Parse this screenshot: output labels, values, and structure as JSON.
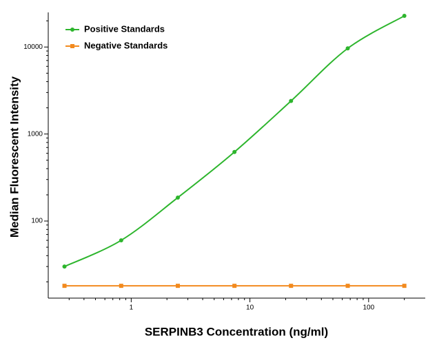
{
  "chart_data": {
    "type": "line",
    "x_label": "SERPINB3 Concentration (ng/ml)",
    "y_label": "Median Fluorescent Intensity",
    "x": [
      0.274,
      0.823,
      2.47,
      7.41,
      22.2,
      66.7,
      200
    ],
    "series": [
      {
        "name": "Positive Standards",
        "color": "#2db52d",
        "marker": "circle",
        "values": [
          30,
          60,
          186,
          622,
          2400,
          9650,
          22800
        ]
      },
      {
        "name": "Negative Standards",
        "color": "#f28a1e",
        "marker": "square",
        "values": [
          18,
          18,
          18,
          18,
          18,
          18,
          18
        ]
      }
    ],
    "xlim": [
      0.2,
      300
    ],
    "xticks": [
      1,
      10,
      100
    ],
    "ylim": [
      13,
      25000
    ],
    "yticks": [
      100,
      1000,
      10000
    ],
    "log_x": true,
    "log_y": true,
    "legend": "top-left",
    "grid": false
  }
}
